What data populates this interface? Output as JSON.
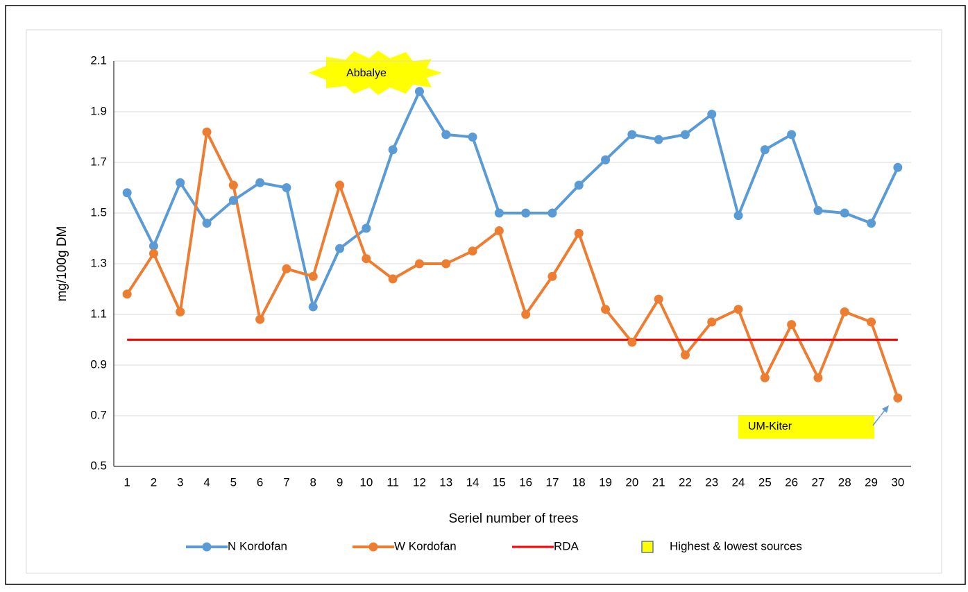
{
  "chart_data": {
    "type": "line",
    "x_label": "Seriel number of trees",
    "y_label": "mg/100g DM",
    "categories": [
      "1",
      "2",
      "3",
      "4",
      "5",
      "6",
      "7",
      "8",
      "9",
      "10",
      "11",
      "12",
      "13",
      "14",
      "15",
      "16",
      "17",
      "18",
      "19",
      "20",
      "21",
      "22",
      "23",
      "24",
      "25",
      "26",
      "27",
      "28",
      "29",
      "30"
    ],
    "series": [
      {
        "name": "N Kordofan",
        "color": "#5b9bd5",
        "marker": true,
        "values": [
          1.58,
          1.37,
          1.62,
          1.46,
          1.55,
          1.62,
          1.6,
          1.13,
          1.36,
          1.44,
          1.75,
          1.98,
          1.81,
          1.8,
          1.5,
          1.5,
          1.5,
          1.61,
          1.71,
          1.81,
          1.79,
          1.81,
          1.89,
          1.49,
          1.75,
          1.81,
          1.51,
          1.5,
          1.46,
          1.68
        ]
      },
      {
        "name": "W Kordofan",
        "color": "#ed7d31",
        "marker": true,
        "values": [
          1.18,
          1.34,
          1.11,
          1.82,
          1.61,
          1.08,
          1.28,
          1.25,
          1.61,
          1.32,
          1.24,
          1.3,
          1.3,
          1.35,
          1.43,
          1.1,
          1.25,
          1.42,
          1.12,
          0.99,
          1.16,
          0.94,
          1.07,
          1.12,
          0.85,
          1.06,
          0.85,
          1.11,
          1.07,
          0.77
        ]
      },
      {
        "name": "RDA",
        "color": "#ff0000",
        "marker": false,
        "values": [
          1,
          1,
          1,
          1,
          1,
          1,
          1,
          1,
          1,
          1,
          1,
          1,
          1,
          1,
          1,
          1,
          1,
          1,
          1,
          1,
          1,
          1,
          1,
          1,
          1,
          1,
          1,
          1,
          1,
          1
        ]
      }
    ],
    "highlight_legend": {
      "label": "Highest & lowest sources",
      "color": "#ffff00"
    },
    "annotations": [
      "Abbalye",
      "UM-Kiter"
    ],
    "ylim": [
      0.5,
      2.1
    ],
    "yticks": [
      0.5,
      0.7,
      0.9,
      1.1,
      1.3,
      1.5,
      1.7,
      1.9,
      2.1
    ],
    "grid": true
  }
}
